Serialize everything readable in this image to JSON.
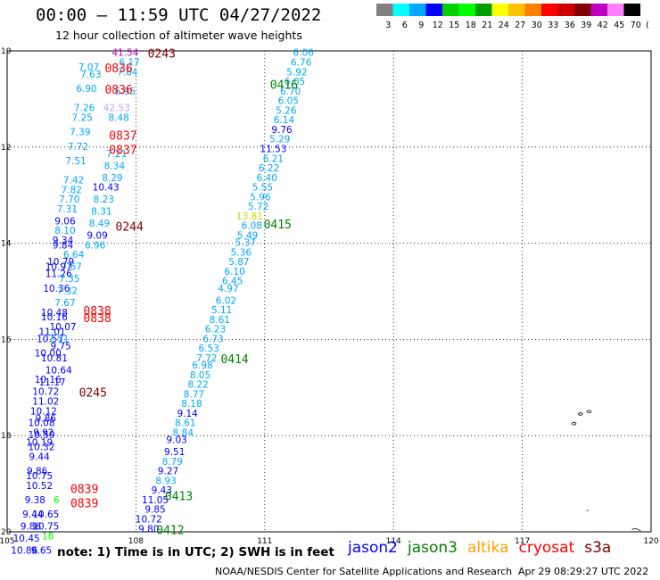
{
  "header": {
    "title": "00:00 – 11:59 UTC 04/27/2022",
    "subtitle": "12 hour collection of altimeter wave heights"
  },
  "color_scale": {
    "labels": [
      "3",
      "6",
      "9",
      "12",
      "15",
      "18",
      "21",
      "24",
      "27",
      "30",
      "33",
      "36",
      "39",
      "42",
      "45",
      "70"
    ],
    "colors": [
      "#808080",
      "#00ffff",
      "#00a8ff",
      "#0000ff",
      "#00d000",
      "#00ff00",
      "#00a000",
      "#ffff00",
      "#ffc000",
      "#ff8000",
      "#ff0000",
      "#d00000",
      "#800000",
      "#c000c0",
      "#ff80ff",
      "#000000"
    ],
    "units": "(ft)"
  },
  "axes": {
    "lon_ticks": [
      "105",
      "108",
      "111",
      "114",
      "117",
      "120"
    ],
    "lat_ticks": [
      "10",
      "12",
      "14",
      "16",
      "18",
      "20"
    ]
  },
  "chart_data": {
    "type": "map",
    "lon_range": [
      105,
      120
    ],
    "lat_range": [
      20,
      10
    ],
    "pass_labels": [
      {
        "text": "0243",
        "lon": 108.6,
        "lat": 10.05,
        "color": "#800000"
      },
      {
        "text": "0836",
        "lon": 107.6,
        "lat": 10.35,
        "color": "#ff0000"
      },
      {
        "text": "0836",
        "lon": 107.6,
        "lat": 10.8,
        "color": "#ff0000"
      },
      {
        "text": "0837",
        "lon": 107.7,
        "lat": 11.75,
        "color": "#ff0000"
      },
      {
        "text": "0837",
        "lon": 107.7,
        "lat": 12.05,
        "color": "#ff0000"
      },
      {
        "text": "0244",
        "lon": 107.85,
        "lat": 13.65,
        "color": "#800000"
      },
      {
        "text": "0838",
        "lon": 107.1,
        "lat": 15.4,
        "color": "#ff0000"
      },
      {
        "text": "0838",
        "lon": 107.1,
        "lat": 15.55,
        "color": "#ff0000"
      },
      {
        "text": "0245",
        "lon": 107.0,
        "lat": 17.1,
        "color": "#800000"
      },
      {
        "text": "0839",
        "lon": 106.8,
        "lat": 19.1,
        "color": "#ff0000"
      },
      {
        "text": "0839",
        "lon": 106.8,
        "lat": 19.4,
        "color": "#ff0000"
      },
      {
        "text": "0416",
        "lon": 111.45,
        "lat": 10.7,
        "color": "#008000"
      },
      {
        "text": "0415",
        "lon": 111.3,
        "lat": 13.6,
        "color": "#008000"
      },
      {
        "text": "0414",
        "lon": 110.3,
        "lat": 16.4,
        "color": "#008000"
      },
      {
        "text": "0413",
        "lon": 109.0,
        "lat": 19.25,
        "color": "#008000"
      },
      {
        "text": "0412",
        "lon": 108.8,
        "lat": 19.95,
        "color": "#008000"
      }
    ],
    "tracks": [
      {
        "satellite": "jason3",
        "color": "#00a8ff",
        "values": [
          {
            "v": "6.06",
            "lon": 111.9,
            "lat": 10.05
          },
          {
            "v": "6.76",
            "lon": 111.85,
            "lat": 10.25
          },
          {
            "v": "5.92",
            "lon": 111.75,
            "lat": 10.45
          },
          {
            "v": "6.05",
            "lon": 111.7,
            "lat": 10.65
          },
          {
            "v": "6.70",
            "lon": 111.6,
            "lat": 10.85
          },
          {
            "v": "6.05",
            "lon": 111.55,
            "lat": 11.05
          },
          {
            "v": "5.26",
            "lon": 111.5,
            "lat": 11.25
          },
          {
            "v": "6.14",
            "lon": 111.45,
            "lat": 11.45
          },
          {
            "v": "9.76",
            "lon": 111.4,
            "lat": 11.65,
            "color": "#0000ff"
          },
          {
            "v": "5.29",
            "lon": 111.35,
            "lat": 11.85
          },
          {
            "v": "11.53",
            "lon": 111.2,
            "lat": 12.05,
            "color": "#0000ff"
          },
          {
            "v": "6.21",
            "lon": 111.2,
            "lat": 12.25
          },
          {
            "v": "6.22",
            "lon": 111.1,
            "lat": 12.45
          },
          {
            "v": "6.40",
            "lon": 111.05,
            "lat": 12.65
          },
          {
            "v": "5.55",
            "lon": 110.95,
            "lat": 12.85
          },
          {
            "v": "5.96",
            "lon": 110.9,
            "lat": 13.05
          },
          {
            "v": "5.72",
            "lon": 110.85,
            "lat": 13.25
          },
          {
            "v": "13.81",
            "lon": 110.65,
            "lat": 13.45,
            "color": "#c0e000"
          },
          {
            "v": "6.08",
            "lon": 110.7,
            "lat": 13.65
          },
          {
            "v": "5.49",
            "lon": 110.6,
            "lat": 13.85
          },
          {
            "v": "5.37",
            "lon": 110.55,
            "lat": 14.0
          },
          {
            "v": "5.36",
            "lon": 110.45,
            "lat": 14.2
          },
          {
            "v": "5.87",
            "lon": 110.4,
            "lat": 14.4
          },
          {
            "v": "6.10",
            "lon": 110.3,
            "lat": 14.6
          },
          {
            "v": "6.45",
            "lon": 110.25,
            "lat": 14.8
          },
          {
            "v": "4.97",
            "lon": 110.15,
            "lat": 14.95
          },
          {
            "v": "6.02",
            "lon": 110.1,
            "lat": 15.2
          },
          {
            "v": "5.11",
            "lon": 110.0,
            "lat": 15.4
          },
          {
            "v": "8.61",
            "lon": 109.95,
            "lat": 15.6
          },
          {
            "v": "6.23",
            "lon": 109.85,
            "lat": 15.8
          },
          {
            "v": "6.73",
            "lon": 109.8,
            "lat": 16.0
          },
          {
            "v": "6.53",
            "lon": 109.7,
            "lat": 16.2
          },
          {
            "v": "7.72",
            "lon": 109.65,
            "lat": 16.4
          },
          {
            "v": "6.98",
            "lon": 109.55,
            "lat": 16.55
          },
          {
            "v": "8.05",
            "lon": 109.5,
            "lat": 16.75
          },
          {
            "v": "8.22",
            "lon": 109.45,
            "lat": 16.95
          },
          {
            "v": "8.77",
            "lon": 109.35,
            "lat": 17.15
          },
          {
            "v": "8.18",
            "lon": 109.3,
            "lat": 17.35
          },
          {
            "v": "9.14",
            "lon": 109.2,
            "lat": 17.55,
            "color": "#0000ff"
          },
          {
            "v": "8.61",
            "lon": 109.15,
            "lat": 17.75
          },
          {
            "v": "8.84",
            "lon": 109.1,
            "lat": 17.95
          },
          {
            "v": "9.03",
            "lon": 108.95,
            "lat": 18.1,
            "color": "#0000ff"
          },
          {
            "v": "9.51",
            "lon": 108.9,
            "lat": 18.35,
            "color": "#0000ff"
          },
          {
            "v": "8.79",
            "lon": 108.85,
            "lat": 18.55
          },
          {
            "v": "9.27",
            "lon": 108.75,
            "lat": 18.75,
            "color": "#0000ff"
          },
          {
            "v": "8.93",
            "lon": 108.7,
            "lat": 18.95
          },
          {
            "v": "9.43",
            "lon": 108.6,
            "lat": 19.15,
            "color": "#0000ff"
          },
          {
            "v": "11.05",
            "lon": 108.45,
            "lat": 19.35,
            "color": "#0000ff"
          },
          {
            "v": "9.85",
            "lon": 108.45,
            "lat": 19.55,
            "color": "#0000ff"
          },
          {
            "v": "10.72",
            "lon": 108.3,
            "lat": 19.75,
            "color": "#0000ff"
          },
          {
            "v": "9.80",
            "lon": 108.3,
            "lat": 19.95,
            "color": "#0000ff"
          }
        ]
      },
      {
        "satellite": "cryosat",
        "color": "#00a8ff",
        "values": [
          {
            "v": "41.54",
            "lon": 107.75,
            "lat": 10.05,
            "color": "#c000c0"
          },
          {
            "v": "6.17",
            "lon": 107.85,
            "lat": 10.25
          },
          {
            "v": "7.64",
            "lon": 107.8,
            "lat": 10.45
          },
          {
            "v": "6.95",
            "lon": 107.75,
            "lat": 10.85
          },
          {
            "v": "42.53",
            "lon": 107.55,
            "lat": 11.2,
            "color": "#c0a0ff"
          },
          {
            "v": "8.48",
            "lon": 107.6,
            "lat": 11.4
          },
          {
            "v": "7.21",
            "lon": 107.55,
            "lat": 12.15
          },
          {
            "v": "8.34",
            "lon": 107.5,
            "lat": 12.4
          },
          {
            "v": "8.29",
            "lon": 107.45,
            "lat": 12.65
          },
          {
            "v": "10.43",
            "lon": 107.3,
            "lat": 12.85,
            "color": "#0000ff"
          },
          {
            "v": "8.23",
            "lon": 107.25,
            "lat": 13.1
          },
          {
            "v": "8.31",
            "lon": 107.2,
            "lat": 13.35
          },
          {
            "v": "8.49",
            "lon": 107.15,
            "lat": 13.6
          },
          {
            "v": "9.09",
            "lon": 107.1,
            "lat": 13.85,
            "color": "#0000ff"
          },
          {
            "v": "6.96",
            "lon": 107.05,
            "lat": 14.05
          }
        ]
      },
      {
        "satellite": "sentinel3a",
        "color": "#00a8ff",
        "values": [
          {
            "v": "7.07",
            "lon": 106.9,
            "lat": 10.35
          },
          {
            "v": "7.63",
            "lon": 106.95,
            "lat": 10.5
          },
          {
            "v": "6.90",
            "lon": 106.85,
            "lat": 10.8
          },
          {
            "v": "7.26",
            "lon": 106.8,
            "lat": 11.2
          },
          {
            "v": "7.25",
            "lon": 106.75,
            "lat": 11.4
          },
          {
            "v": "7.39",
            "lon": 106.7,
            "lat": 11.7
          },
          {
            "v": "7.72",
            "lon": 106.65,
            "lat": 12.0
          },
          {
            "v": "7.51",
            "lon": 106.6,
            "lat": 12.3
          },
          {
            "v": "7.42",
            "lon": 106.55,
            "lat": 12.7
          },
          {
            "v": "7.82",
            "lon": 106.5,
            "lat": 12.9
          },
          {
            "v": "7.70",
            "lon": 106.45,
            "lat": 13.1
          },
          {
            "v": "7.31",
            "lon": 106.4,
            "lat": 13.3
          },
          {
            "v": "9.06",
            "lon": 106.35,
            "lat": 13.55,
            "color": "#0000ff"
          },
          {
            "v": "8.10",
            "lon": 106.35,
            "lat": 13.75
          },
          {
            "v": "9.34",
            "lon": 106.3,
            "lat": 13.95,
            "color": "#0000ff"
          },
          {
            "v": "9.84",
            "lon": 106.3,
            "lat": 14.05,
            "color": "#0000ff"
          },
          {
            "v": "6.64",
            "lon": 106.55,
            "lat": 14.25
          },
          {
            "v": "10.79",
            "lon": 106.25,
            "lat": 14.4,
            "color": "#0000ff"
          },
          {
            "v": "7.67",
            "lon": 106.5,
            "lat": 14.5
          },
          {
            "v": "10.97",
            "lon": 106.2,
            "lat": 14.5,
            "color": "#0000ff"
          },
          {
            "v": "11.26",
            "lon": 106.2,
            "lat": 14.65,
            "color": "#0000ff"
          },
          {
            "v": "7.35",
            "lon": 106.45,
            "lat": 14.75
          },
          {
            "v": "10.36",
            "lon": 106.15,
            "lat": 14.95,
            "color": "#0000ff"
          },
          {
            "v": "7.32",
            "lon": 106.4,
            "lat": 15.0
          },
          {
            "v": "7.67",
            "lon": 106.35,
            "lat": 15.25
          },
          {
            "v": "10.48",
            "lon": 106.1,
            "lat": 15.45,
            "color": "#0000ff"
          },
          {
            "v": "10.16",
            "lon": 106.1,
            "lat": 15.55,
            "color": "#0000ff"
          },
          {
            "v": "10.07",
            "lon": 106.3,
            "lat": 15.75,
            "color": "#0000ff"
          },
          {
            "v": "11.01",
            "lon": 106.05,
            "lat": 15.85,
            "color": "#0000ff"
          },
          {
            "v": "10.57",
            "lon": 106.0,
            "lat": 16.0,
            "color": "#0000ff"
          },
          {
            "v": "7.51",
            "lon": 106.2,
            "lat": 16.0
          },
          {
            "v": "9.75",
            "lon": 106.25,
            "lat": 16.15,
            "color": "#0000ff"
          },
          {
            "v": "10.00",
            "lon": 105.95,
            "lat": 16.3,
            "color": "#0000ff"
          },
          {
            "v": "10.81",
            "lon": 106.1,
            "lat": 16.4,
            "color": "#0000ff"
          },
          {
            "v": "10.64",
            "lon": 106.2,
            "lat": 16.65,
            "color": "#0000ff"
          },
          {
            "v": "10.16",
            "lon": 105.95,
            "lat": 16.85,
            "color": "#0000ff"
          },
          {
            "v": "11.17",
            "lon": 106.05,
            "lat": 16.9,
            "color": "#0000ff"
          },
          {
            "v": "10.72",
            "lon": 105.9,
            "lat": 17.1,
            "color": "#0000ff"
          },
          {
            "v": "11.02",
            "lon": 105.9,
            "lat": 17.3,
            "color": "#0000ff"
          },
          {
            "v": "10.12",
            "lon": 105.85,
            "lat": 17.5,
            "color": "#0000ff"
          },
          {
            "v": "9.86",
            "lon": 105.9,
            "lat": 17.65,
            "color": "#0000ff"
          },
          {
            "v": "10.08",
            "lon": 105.8,
            "lat": 17.75,
            "color": "#0000ff"
          },
          {
            "v": "9.92",
            "lon": 105.85,
            "lat": 17.95,
            "color": "#0000ff"
          },
          {
            "v": "10.59",
            "lon": 105.8,
            "lat": 18.0,
            "color": "#0000ff"
          },
          {
            "v": "10.19",
            "lon": 105.75,
            "lat": 18.15,
            "color": "#0000ff"
          },
          {
            "v": "10.32",
            "lon": 105.8,
            "lat": 18.25,
            "color": "#0000ff"
          },
          {
            "v": "9.44",
            "lon": 105.75,
            "lat": 18.45,
            "color": "#0000ff"
          },
          {
            "v": "9.86",
            "lon": 105.7,
            "lat": 18.75,
            "color": "#0000ff"
          },
          {
            "v": "10.75",
            "lon": 105.75,
            "lat": 18.85,
            "color": "#0000ff"
          },
          {
            "v": "10.52",
            "lon": 105.75,
            "lat": 19.05,
            "color": "#0000ff"
          },
          {
            "v": "9.38",
            "lon": 105.65,
            "lat": 19.35,
            "color": "#0000ff"
          },
          {
            "v": "6",
            "lon": 106.15,
            "lat": 19.35,
            "color": "#00ff00"
          },
          {
            "v": "9.44",
            "lon": 105.6,
            "lat": 19.65,
            "color": "#0000ff"
          },
          {
            "v": "10.65",
            "lon": 105.9,
            "lat": 19.65,
            "color": "#0000ff"
          },
          {
            "v": "9.86",
            "lon": 105.55,
            "lat": 19.9,
            "color": "#0000ff"
          },
          {
            "v": "10.75",
            "lon": 105.9,
            "lat": 19.9,
            "color": "#0000ff"
          },
          {
            "v": "10.45",
            "lon": 105.45,
            "lat": 20.15,
            "color": "#0000ff"
          },
          {
            "v": "18",
            "lon": 105.95,
            "lat": 20.1,
            "color": "#00ff00"
          },
          {
            "v": "10.86",
            "lon": 105.4,
            "lat": 20.4,
            "color": "#0000ff"
          },
          {
            "v": "9.65",
            "lon": 105.8,
            "lat": 20.4,
            "color": "#0000ff"
          }
        ]
      }
    ]
  },
  "footer": {
    "note": "note: 1) Time is in UTC; 2) SWH is in feet",
    "legend": [
      {
        "name": "jason2",
        "color": "#0000ff"
      },
      {
        "name": "jason3",
        "color": "#008000"
      },
      {
        "name": "altika",
        "color": "#ffa000"
      },
      {
        "name": "cryosat",
        "color": "#ff0000"
      },
      {
        "name": "s3a",
        "color": "#800000"
      }
    ],
    "credit": "NOAA/NESDIS Center for Satellite Applications and Research",
    "timestamp": "Apr 29 08:29:27 UTC 2022"
  }
}
